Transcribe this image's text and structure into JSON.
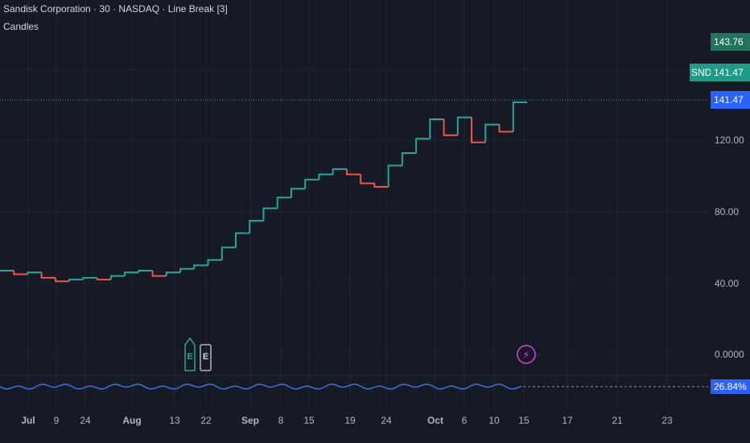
{
  "header": {
    "title": "Sandisk Corporation · 30 · NASDAQ · Line Break [3]",
    "subtitle": "Candles"
  },
  "price_tags": {
    "high": "143.76",
    "symbol": "SNDK",
    "last_top": "141.47",
    "last_main": "141.47",
    "indicator": "26.84%"
  },
  "events": {
    "earnings_1": "E",
    "earnings_2": "E",
    "flash": "⚡"
  },
  "colors": {
    "background": "#161a25",
    "up": "#26a69a",
    "down": "#ef5350",
    "grid": "#232735",
    "indicator_line": "#3d6fe0",
    "last_price_bg": "#2962ff",
    "high_bg": "#22745e"
  },
  "chart_data": {
    "type": "line",
    "title": "Sandisk Corporation · 30 · NASDAQ · Line Break [3]",
    "y_ticks": [
      "120.00",
      "80.00",
      "40.00",
      "0.0000"
    ],
    "y_tick_values": [
      120,
      80,
      40,
      0
    ],
    "x_ticks": [
      "Jul",
      "9",
      "24",
      "Aug",
      "13",
      "22",
      "Sep",
      "8",
      "15",
      "19",
      "24",
      "Oct",
      "6",
      "10",
      "15",
      "17",
      "21",
      "23"
    ],
    "last_price": 141.47,
    "high_price": 143.76,
    "series": [
      {
        "values": [
          {
            "x": "Jul 1",
            "y": 47
          },
          {
            "x": "Jul 5",
            "y": 45
          },
          {
            "x": "Jul 9",
            "y": 46
          },
          {
            "x": "Jul 14",
            "y": 43
          },
          {
            "x": "Jul 19",
            "y": 41
          },
          {
            "x": "Jul 24",
            "y": 42
          },
          {
            "x": "Jul 29",
            "y": 43
          },
          {
            "x": "Aug 1",
            "y": 42
          },
          {
            "x": "Aug 5",
            "y": 44
          },
          {
            "x": "Aug 9",
            "y": 46
          },
          {
            "x": "Aug 13",
            "y": 47
          },
          {
            "x": "Aug 17",
            "y": 44
          },
          {
            "x": "Aug 20",
            "y": 46
          },
          {
            "x": "Aug 22",
            "y": 48
          },
          {
            "x": "Aug 26",
            "y": 50
          },
          {
            "x": "Sep 1",
            "y": 53
          },
          {
            "x": "Sep 4",
            "y": 60
          },
          {
            "x": "Sep 6",
            "y": 68
          },
          {
            "x": "Sep 8",
            "y": 75
          },
          {
            "x": "Sep 10",
            "y": 82
          },
          {
            "x": "Sep 13",
            "y": 88
          },
          {
            "x": "Sep 15",
            "y": 93
          },
          {
            "x": "Sep 17",
            "y": 98
          },
          {
            "x": "Sep 19",
            "y": 101
          },
          {
            "x": "Sep 21",
            "y": 104
          },
          {
            "x": "Sep 23",
            "y": 101
          },
          {
            "x": "Sep 24",
            "y": 96
          },
          {
            "x": "Sep 26",
            "y": 94
          },
          {
            "x": "Sep 28",
            "y": 106
          },
          {
            "x": "Sep 30",
            "y": 113
          },
          {
            "x": "Oct 2",
            "y": 121
          },
          {
            "x": "Oct 4",
            "y": 132
          },
          {
            "x": "Oct 6",
            "y": 123
          },
          {
            "x": "Oct 8",
            "y": 133
          },
          {
            "x": "Oct 10",
            "y": 119
          },
          {
            "x": "Oct 12",
            "y": 129
          },
          {
            "x": "Oct 14",
            "y": 125
          },
          {
            "x": "Oct 15",
            "y": 141.47
          }
        ]
      }
    ]
  }
}
